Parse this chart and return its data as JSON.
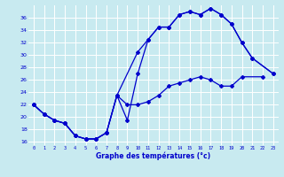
{
  "bg_color": "#c8eaf0",
  "grid_color": "#ffffff",
  "line_color": "#0000cc",
  "xlabel": "Graphe des températures (°c)",
  "xlim": [
    -0.5,
    23.5
  ],
  "ylim": [
    15.5,
    38.0
  ],
  "yticks": [
    16,
    18,
    20,
    22,
    24,
    26,
    28,
    30,
    32,
    34,
    36
  ],
  "xticks": [
    0,
    1,
    2,
    3,
    4,
    5,
    6,
    7,
    8,
    9,
    10,
    11,
    12,
    13,
    14,
    15,
    16,
    17,
    18,
    19,
    20,
    21,
    22,
    23
  ],
  "s1_x": [
    0,
    1,
    2,
    3,
    4,
    5,
    6,
    7,
    8,
    10,
    11,
    12,
    13,
    14,
    15,
    16,
    17,
    18,
    19,
    20,
    21,
    23
  ],
  "s1_y": [
    22,
    20.5,
    19.5,
    19.0,
    17.0,
    16.5,
    16.5,
    17.5,
    23.5,
    30.5,
    32.5,
    34.5,
    34.5,
    36.5,
    37.0,
    36.5,
    37.5,
    36.5,
    35.0,
    32.0,
    29.5,
    27.0
  ],
  "s2_x": [
    0,
    1,
    2,
    3,
    4,
    5,
    6,
    7,
    8,
    9,
    10,
    11,
    12,
    13,
    14,
    15,
    16,
    17,
    18,
    19,
    20,
    21,
    23
  ],
  "s2_y": [
    22,
    20.5,
    19.5,
    19.0,
    17.0,
    16.5,
    16.5,
    17.5,
    23.5,
    19.5,
    27.0,
    32.5,
    34.5,
    34.5,
    36.5,
    37.0,
    36.5,
    37.5,
    36.5,
    35.0,
    32.0,
    29.5,
    27.0
  ],
  "s3_x": [
    0,
    1,
    2,
    3,
    4,
    5,
    6,
    7,
    8,
    9,
    10,
    11,
    12,
    13,
    14,
    15,
    16,
    17,
    18,
    19,
    20,
    22
  ],
  "s3_y": [
    22,
    20.5,
    19.5,
    19.0,
    17.0,
    16.5,
    16.5,
    17.5,
    23.5,
    22.0,
    22.0,
    22.5,
    23.5,
    25.0,
    25.5,
    26.0,
    26.5,
    26.0,
    25.0,
    25.0,
    26.5,
    26.5
  ]
}
